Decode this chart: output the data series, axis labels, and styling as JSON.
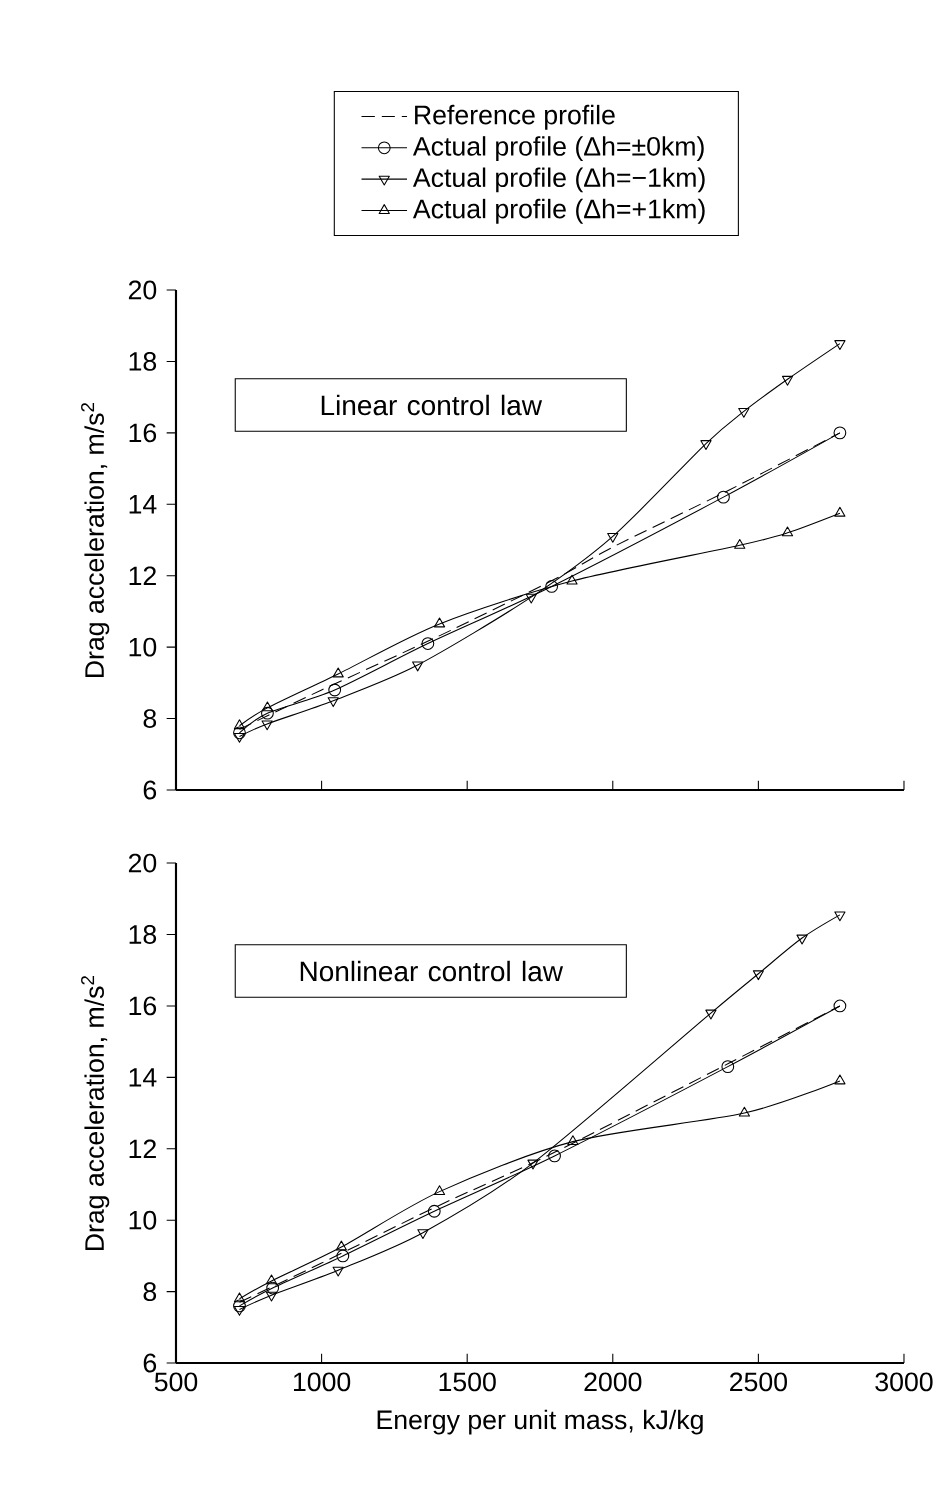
{
  "chart_data": [
    {
      "type": "line",
      "ylabel": "Drag acceleration, m/s$^{2}$",
      "annotations": [
        "Linear control law"
      ],
      "xlim": [
        500,
        3000
      ],
      "xticks": [
        500,
        1000,
        1500,
        2000,
        2500,
        3000
      ],
      "ylim": [
        6,
        20
      ],
      "yticks": [
        6,
        8,
        10,
        12,
        14,
        16,
        18,
        20
      ],
      "tick_labels": "y",
      "legend": "top",
      "grid": false,
      "series": [
        {
          "name": "Reference profile",
          "color": "#000000",
          "line_style": "dashed",
          "marker": "none",
          "x": [
            718,
            1000,
            1400,
            1800,
            2000,
            2400,
            2780
          ],
          "values": [
            7.7,
            8.8,
            10.3,
            11.9,
            12.8,
            14.4,
            16.0
          ]
        },
        {
          "name": "Actual profile (Δh=±0km)",
          "color": "#000000",
          "line_style": "solid",
          "marker": "circle",
          "x": [
            718,
            814,
            1045,
            1365,
            1790,
            2380,
            2780
          ],
          "values": [
            7.6,
            8.15,
            8.8,
            10.1,
            11.7,
            14.2,
            16.0
          ]
        },
        {
          "name": "Actual profile (Δh=−1km)",
          "color": "#000000",
          "line_style": "solid",
          "marker": "triangle-down",
          "x": [
            718,
            813,
            1040,
            1330,
            1720,
            2000,
            2320,
            2450,
            2600,
            2780
          ],
          "values": [
            7.5,
            7.85,
            8.5,
            9.5,
            11.4,
            13.1,
            15.7,
            16.6,
            17.5,
            18.5
          ]
        },
        {
          "name": "Actual profile (Δh=+1km)",
          "color": "#000000",
          "line_style": "solid",
          "marker": "triangle",
          "x": [
            718,
            814,
            1057,
            1405,
            1860,
            2436,
            2600,
            2780
          ],
          "values": [
            7.8,
            8.3,
            9.25,
            10.65,
            11.85,
            12.85,
            13.2,
            13.75
          ]
        }
      ]
    },
    {
      "type": "line",
      "xlabel": "Energy per unit mass, kJ/kg",
      "ylabel": "Drag acceleration, m/s$^{2}$",
      "annotations": [
        "Nonlinear control law"
      ],
      "xlim": [
        500,
        3000
      ],
      "xticks": [
        500,
        1000,
        1500,
        2000,
        2500,
        3000
      ],
      "ylim": [
        6,
        20
      ],
      "yticks": [
        6,
        8,
        10,
        12,
        14,
        16,
        18,
        20
      ],
      "grid": false,
      "series": [
        {
          "color": "#000000",
          "line_style": "dashed",
          "marker": "none",
          "x": [
            718,
            1000,
            1400,
            1800,
            2400,
            2780
          ],
          "values": [
            7.7,
            8.8,
            10.4,
            11.9,
            14.4,
            16.0
          ]
        },
        {
          "color": "#000000",
          "line_style": "solid",
          "marker": "circle",
          "x": [
            718,
            832,
            1073,
            1387,
            1800,
            2395,
            2780
          ],
          "values": [
            7.6,
            8.1,
            9.0,
            10.25,
            11.8,
            14.3,
            16.0
          ]
        },
        {
          "color": "#000000",
          "line_style": "solid",
          "marker": "triangle-down",
          "x": [
            718,
            828,
            1057,
            1348,
            1726,
            2337,
            2500,
            2650,
            2780
          ],
          "values": [
            7.5,
            7.9,
            8.6,
            9.65,
            11.6,
            15.8,
            16.9,
            17.9,
            18.55
          ]
        },
        {
          "color": "#000000",
          "line_style": "solid",
          "marker": "triangle",
          "x": [
            718,
            828,
            1068,
            1405,
            1863,
            2452,
            2780
          ],
          "values": [
            7.8,
            8.3,
            9.25,
            10.8,
            12.2,
            13.0,
            13.9
          ]
        }
      ]
    }
  ]
}
